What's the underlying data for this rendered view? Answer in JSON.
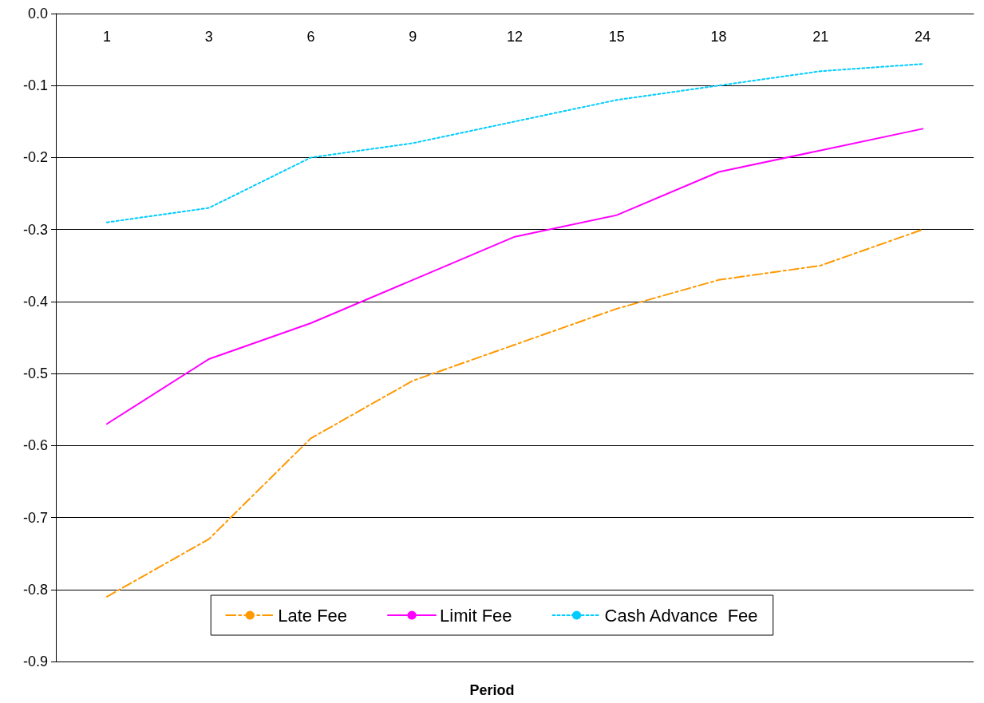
{
  "chart_data": {
    "type": "line",
    "xlabel": "Period",
    "categories": [
      "1",
      "3",
      "6",
      "9",
      "12",
      "15",
      "18",
      "21",
      "24"
    ],
    "series": [
      {
        "name": "Late Fee",
        "color": "#ff9900",
        "line_style": "dashed",
        "values": [
          -0.81,
          -0.73,
          -0.59,
          -0.51,
          -0.46,
          -0.41,
          -0.37,
          -0.35,
          -0.3
        ]
      },
      {
        "name": "Limit Fee",
        "color": "#ff00ff",
        "line_style": "solid",
        "values": [
          -0.57,
          -0.48,
          -0.43,
          -0.37,
          -0.31,
          -0.28,
          -0.22,
          -0.19,
          -0.16
        ]
      },
      {
        "name": "Cash Advance  Fee",
        "color": "#00ccff",
        "line_style": "dotted",
        "values": [
          -0.29,
          -0.27,
          -0.2,
          -0.18,
          -0.15,
          -0.12,
          -0.1,
          -0.08,
          -0.07
        ]
      }
    ],
    "ylim": [
      -0.9,
      0
    ],
    "yticks": [
      {
        "value": 0,
        "label": "0.0"
      },
      -0.1,
      -0.2,
      -0.3,
      -0.4,
      -0.5,
      -0.6,
      -0.7,
      -0.8,
      -0.9
    ],
    "grid": "y",
    "legend": "bottom",
    "marker": "none"
  }
}
